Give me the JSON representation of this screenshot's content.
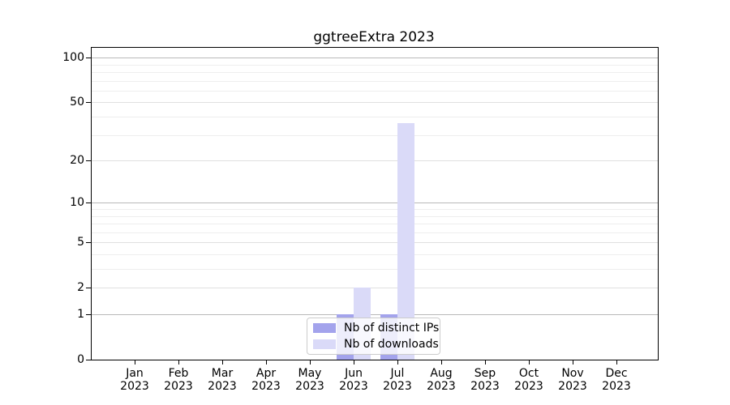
{
  "chart_data": {
    "type": "bar",
    "title": "ggtreeExtra 2023",
    "year": "2023",
    "categories": [
      "Jan",
      "Feb",
      "Mar",
      "Apr",
      "May",
      "Jun",
      "Jul",
      "Aug",
      "Sep",
      "Oct",
      "Nov",
      "Dec"
    ],
    "series": [
      {
        "key": "distinct-ips",
        "name": "Nb of distinct IPs",
        "color": "#a3a3ec",
        "values": [
          0,
          0,
          0,
          0,
          0,
          1,
          1,
          0,
          0,
          0,
          0,
          0
        ]
      },
      {
        "key": "downloads",
        "name": "Nb of downloads",
        "color": "#dadaf8",
        "values": [
          0,
          0,
          0,
          0,
          0,
          2,
          36,
          0,
          0,
          0,
          0,
          0
        ]
      }
    ],
    "yscale": "log1p",
    "ylim": [
      0,
      116
    ],
    "yticks": [
      0,
      1,
      2,
      5,
      10,
      20,
      50,
      100
    ],
    "minor_gridlines": [
      3,
      4,
      6,
      7,
      8,
      9,
      30,
      40,
      60,
      70,
      80,
      90
    ],
    "grid": "horizontal",
    "legend_position": "bottom-center",
    "xlabel": "",
    "ylabel": ""
  },
  "colors": {
    "background": "#ffffff",
    "axis": "#000000",
    "grid_major": "#b9b9b9",
    "grid_mid": "#e0e0e0",
    "grid_minor": "#eeeeee",
    "legend_border": "#cccccc",
    "legend_background": "rgba(255,255,255,0.8)",
    "text": "#000000"
  }
}
